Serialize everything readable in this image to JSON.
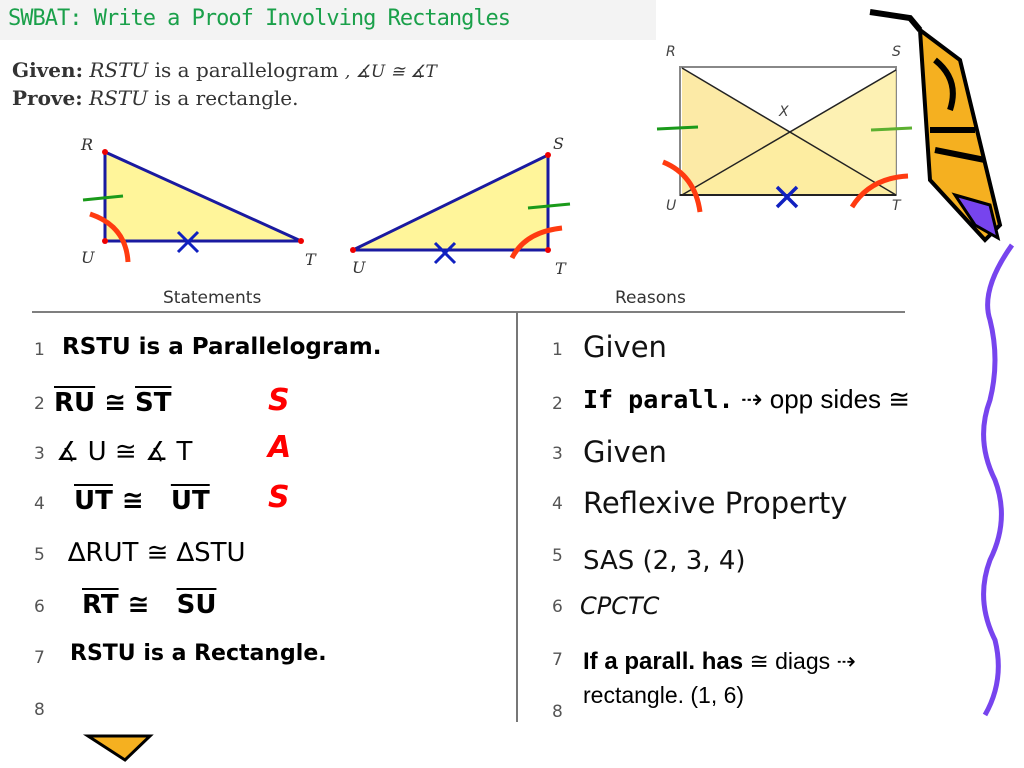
{
  "title": "SWBAT: Write a Proof Involving Rectangles",
  "given": {
    "label": "Given:",
    "figure": "RSTU",
    "text": "is a parallelogram",
    "extra": ", ∡U ≅ ∡T"
  },
  "prove": {
    "label": "Prove:",
    "figure": "RSTU",
    "text": "is a rectangle."
  },
  "triangle_left": {
    "labels": [
      "R",
      "U",
      "T"
    ]
  },
  "triangle_right": {
    "labels": [
      "S",
      "U",
      "T"
    ]
  },
  "rectangle": {
    "labels": [
      "R",
      "S",
      "U",
      "T",
      "X"
    ]
  },
  "table": {
    "headers": [
      "Statements",
      "Reasons"
    ],
    "statements": [
      {
        "n": "1",
        "text": "RSTU is a Parallelogram."
      },
      {
        "n": "2",
        "a": "RU",
        "rel": " ≅ ",
        "b": "ST",
        "mark": "S"
      },
      {
        "n": "3",
        "a": "∡ U",
        "rel": " ≅ ",
        "b": "∡ T",
        "mark": "A"
      },
      {
        "n": "4",
        "a": "UT",
        "rel": " ≅ ",
        "b": "UT",
        "mark": "S"
      },
      {
        "n": "5",
        "text": "∆RUT ≅ ∆STU"
      },
      {
        "n": "6",
        "a": "RT",
        "rel": " ≅ ",
        "b": "SU"
      },
      {
        "n": "7",
        "text": "RSTU is a Rectangle."
      },
      {
        "n": "8",
        "text": ""
      }
    ],
    "reasons": [
      {
        "n": "1",
        "text": "Given"
      },
      {
        "n": "2",
        "bold": "If  parall.",
        "text": " ⇢ opp sides ≅"
      },
      {
        "n": "3",
        "text": "Given"
      },
      {
        "n": "4",
        "text": "Reflexive Property"
      },
      {
        "n": "5",
        "text": "SAS (2, 3, 4)"
      },
      {
        "n": "6",
        "text": "CPCTC"
      },
      {
        "n": "7",
        "bold": "If a parall. has",
        "text": " ≅ diags ⇢"
      },
      {
        "n": "8",
        "text": "rectangle. (1, 6)"
      }
    ]
  },
  "colors": {
    "title": "#1aa04a",
    "sas_marks": "#ff0000",
    "fill": "#fff59a",
    "tick": "#1a9a1a",
    "arc": "#ff3b10",
    "cross": "#1020c0",
    "squiggle": "#7744ee"
  }
}
